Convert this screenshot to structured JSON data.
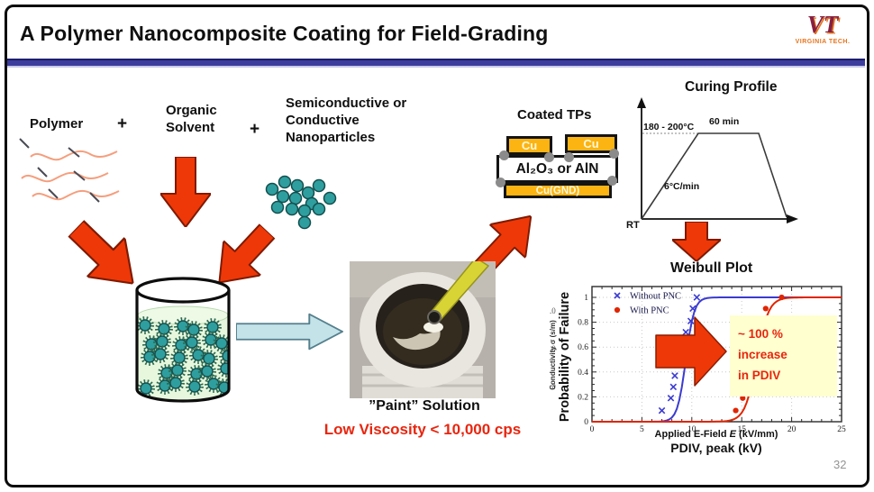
{
  "slide": {
    "title": "A Polymer Nanocomposite Coating for Field-Grading",
    "page_number": "32",
    "logo": {
      "monogram": "VT",
      "text": "VIRGINIA TECH."
    }
  },
  "ingredients": {
    "polymer": "Polymer",
    "plus_1": "+",
    "solvent": "Organic Solvent",
    "plus_2": "+",
    "nanoparticles": "Semiconductive or Conductive Nanoparticles"
  },
  "mixing": {
    "paint_caption": "”Paint” Solution",
    "viscosity_note": "Low Viscosity < 10,000 cps"
  },
  "coated_tps": {
    "heading": "Coated TPs",
    "cu_left": "Cu",
    "cu_right": "Cu",
    "substrate": "Al₂O₃ or AlN",
    "ground": "Cu(GND)"
  },
  "curing_profile": {
    "heading": "Curing Profile",
    "temp": "180 - 200°C",
    "dwell": "60 min",
    "ramp_rate": "6°C/min",
    "start": "RT"
  },
  "weibull": {
    "heading": "Weibull Plot"
  },
  "chart_data": {
    "type": "scatter",
    "title": "Weibull Plot",
    "xlabel_parts": [
      "Applied E-Field ",
      "E",
      " (kV/mm)"
    ],
    "xlabel_secondary": "PDIV, peak (kV)",
    "ylabel": "Probability of Failure",
    "ylabel_underlay": "Conductivity σ (s/m)",
    "ghost_tick_fragments": [
      ".0",
      ".0",
      ".0"
    ],
    "xlim": [
      0,
      25
    ],
    "ylim": [
      0,
      1
    ],
    "xticks": [
      0,
      5,
      10,
      15,
      20,
      25
    ],
    "yticks": [
      0,
      0.2,
      0.4,
      0.6,
      0.8,
      1
    ],
    "ytick_labels": [
      "0",
      "0.2",
      "0.4",
      "0.6",
      "0.8",
      "1"
    ],
    "grid": true,
    "legend_position": "top-left",
    "series": [
      {
        "name": "Without PNC",
        "marker": "x",
        "color": "#3b3bd0",
        "points": [
          [
            7.0,
            0.09
          ],
          [
            7.9,
            0.19
          ],
          [
            8.15,
            0.28
          ],
          [
            8.3,
            0.37
          ],
          [
            8.2,
            0.46
          ],
          [
            8.3,
            0.54
          ],
          [
            8.9,
            0.63
          ],
          [
            9.4,
            0.72
          ],
          [
            9.9,
            0.81
          ],
          [
            10.1,
            0.91
          ],
          [
            10.5,
            1.0
          ]
        ],
        "sigmoid_fit": {
          "x50": 9.4,
          "k": 2.4
        }
      },
      {
        "name": "With PNC",
        "marker": "circle",
        "color": "#e02500",
        "points": [
          [
            14.4,
            0.09
          ],
          [
            15.1,
            0.19
          ],
          [
            15.4,
            0.28
          ],
          [
            15.7,
            0.37
          ],
          [
            16.0,
            0.46
          ],
          [
            16.2,
            0.55
          ],
          [
            16.5,
            0.63
          ],
          [
            16.8,
            0.72
          ],
          [
            17.1,
            0.81
          ],
          [
            17.4,
            0.91
          ],
          [
            19.0,
            1.0
          ]
        ],
        "sigmoid_fit": {
          "x50": 16.5,
          "k": 1.7
        }
      }
    ],
    "annotation": {
      "text_lines": [
        "~ 100 %",
        "increase",
        "in PDIV"
      ],
      "box_color": "#ffffd0",
      "text_color": "#e8250e"
    }
  }
}
